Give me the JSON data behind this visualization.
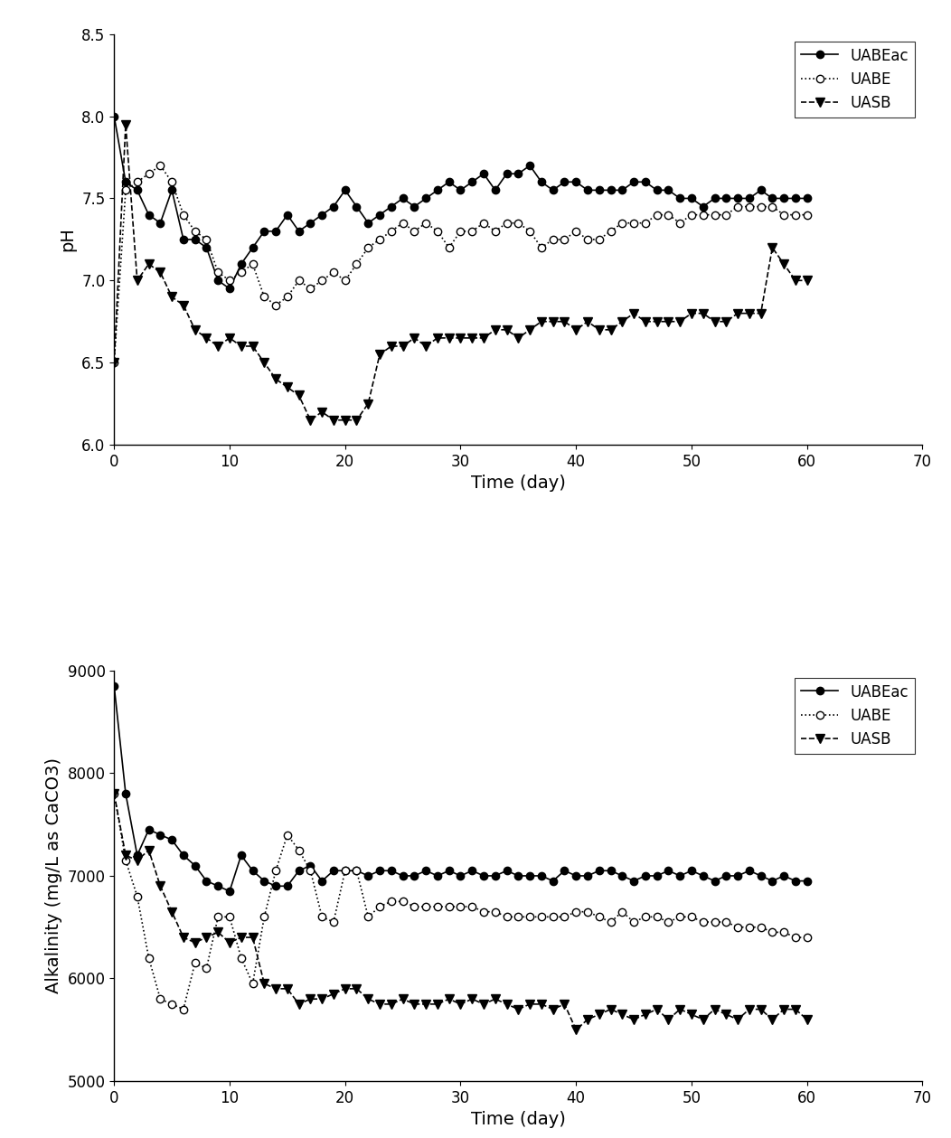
{
  "ph_UABEac_x": [
    0,
    1,
    2,
    3,
    4,
    5,
    6,
    7,
    8,
    9,
    10,
    11,
    12,
    13,
    14,
    15,
    16,
    17,
    18,
    19,
    20,
    21,
    22,
    23,
    24,
    25,
    26,
    27,
    28,
    29,
    30,
    31,
    32,
    33,
    34,
    35,
    36,
    37,
    38,
    39,
    40,
    41,
    42,
    43,
    44,
    45,
    46,
    47,
    48,
    49,
    50,
    51,
    52,
    53,
    54,
    55,
    56,
    57,
    58,
    59,
    60
  ],
  "ph_UABEac_y": [
    8.0,
    7.6,
    7.55,
    7.4,
    7.35,
    7.55,
    7.25,
    7.25,
    7.2,
    7.0,
    6.95,
    7.1,
    7.2,
    7.3,
    7.3,
    7.4,
    7.3,
    7.35,
    7.4,
    7.45,
    7.55,
    7.45,
    7.35,
    7.4,
    7.45,
    7.5,
    7.45,
    7.5,
    7.55,
    7.6,
    7.55,
    7.6,
    7.65,
    7.55,
    7.65,
    7.65,
    7.7,
    7.6,
    7.55,
    7.6,
    7.6,
    7.55,
    7.55,
    7.55,
    7.55,
    7.6,
    7.6,
    7.55,
    7.55,
    7.5,
    7.5,
    7.45,
    7.5,
    7.5,
    7.5,
    7.5,
    7.55,
    7.5,
    7.5,
    7.5,
    7.5
  ],
  "ph_UABE_x": [
    0,
    1,
    2,
    3,
    4,
    5,
    6,
    7,
    8,
    9,
    10,
    11,
    12,
    13,
    14,
    15,
    16,
    17,
    18,
    19,
    20,
    21,
    22,
    23,
    24,
    25,
    26,
    27,
    28,
    29,
    30,
    31,
    32,
    33,
    34,
    35,
    36,
    37,
    38,
    39,
    40,
    41,
    42,
    43,
    44,
    45,
    46,
    47,
    48,
    49,
    50,
    51,
    52,
    53,
    54,
    55,
    56,
    57,
    58,
    59,
    60
  ],
  "ph_UABE_y": [
    6.5,
    7.55,
    7.6,
    7.65,
    7.7,
    7.6,
    7.4,
    7.3,
    7.25,
    7.05,
    7.0,
    7.05,
    7.1,
    6.9,
    6.85,
    6.9,
    7.0,
    6.95,
    7.0,
    7.05,
    7.0,
    7.1,
    7.2,
    7.25,
    7.3,
    7.35,
    7.3,
    7.35,
    7.3,
    7.2,
    7.3,
    7.3,
    7.35,
    7.3,
    7.35,
    7.35,
    7.3,
    7.2,
    7.25,
    7.25,
    7.3,
    7.25,
    7.25,
    7.3,
    7.35,
    7.35,
    7.35,
    7.4,
    7.4,
    7.35,
    7.4,
    7.4,
    7.4,
    7.4,
    7.45,
    7.45,
    7.45,
    7.45,
    7.4,
    7.4,
    7.4
  ],
  "ph_UASB_x": [
    0,
    1,
    2,
    3,
    4,
    5,
    6,
    7,
    8,
    9,
    10,
    11,
    12,
    13,
    14,
    15,
    16,
    17,
    18,
    19,
    20,
    21,
    22,
    23,
    24,
    25,
    26,
    27,
    28,
    29,
    30,
    31,
    32,
    33,
    34,
    35,
    36,
    37,
    38,
    39,
    40,
    41,
    42,
    43,
    44,
    45,
    46,
    47,
    48,
    49,
    50,
    51,
    52,
    53,
    54,
    55,
    56,
    57,
    58,
    59,
    60
  ],
  "ph_UASB_y": [
    6.5,
    7.95,
    7.0,
    7.1,
    7.05,
    6.9,
    6.85,
    6.7,
    6.65,
    6.6,
    6.65,
    6.6,
    6.6,
    6.5,
    6.4,
    6.35,
    6.3,
    6.15,
    6.2,
    6.15,
    6.15,
    6.15,
    6.25,
    6.55,
    6.6,
    6.6,
    6.65,
    6.6,
    6.65,
    6.65,
    6.65,
    6.65,
    6.65,
    6.7,
    6.7,
    6.65,
    6.7,
    6.75,
    6.75,
    6.75,
    6.7,
    6.75,
    6.7,
    6.7,
    6.75,
    6.8,
    6.75,
    6.75,
    6.75,
    6.75,
    6.8,
    6.8,
    6.75,
    6.75,
    6.8,
    6.8,
    6.8,
    7.2,
    7.1,
    7.0,
    7.0
  ],
  "alk_UABEac_x": [
    0,
    1,
    2,
    3,
    4,
    5,
    6,
    7,
    8,
    9,
    10,
    11,
    12,
    13,
    14,
    15,
    16,
    17,
    18,
    19,
    20,
    21,
    22,
    23,
    24,
    25,
    26,
    27,
    28,
    29,
    30,
    31,
    32,
    33,
    34,
    35,
    36,
    37,
    38,
    39,
    40,
    41,
    42,
    43,
    44,
    45,
    46,
    47,
    48,
    49,
    50,
    51,
    52,
    53,
    54,
    55,
    56,
    57,
    58,
    59,
    60
  ],
  "alk_UABEac_y": [
    8850,
    7800,
    7200,
    7450,
    7400,
    7350,
    7200,
    7100,
    6950,
    6900,
    6850,
    7200,
    7050,
    6950,
    6900,
    6900,
    7050,
    7100,
    6950,
    7050,
    7050,
    7050,
    7000,
    7050,
    7050,
    7000,
    7000,
    7050,
    7000,
    7050,
    7000,
    7050,
    7000,
    7000,
    7050,
    7000,
    7000,
    7000,
    6950,
    7050,
    7000,
    7000,
    7050,
    7050,
    7000,
    6950,
    7000,
    7000,
    7050,
    7000,
    7050,
    7000,
    6950,
    7000,
    7000,
    7050,
    7000,
    6950,
    7000,
    6950,
    6950
  ],
  "alk_UABE_x": [
    0,
    1,
    2,
    3,
    4,
    5,
    6,
    7,
    8,
    9,
    10,
    11,
    12,
    13,
    14,
    15,
    16,
    17,
    18,
    19,
    20,
    21,
    22,
    23,
    24,
    25,
    26,
    27,
    28,
    29,
    30,
    31,
    32,
    33,
    34,
    35,
    36,
    37,
    38,
    39,
    40,
    41,
    42,
    43,
    44,
    45,
    46,
    47,
    48,
    49,
    50,
    51,
    52,
    53,
    54,
    55,
    56,
    57,
    58,
    59,
    60
  ],
  "alk_UABE_y": [
    7800,
    7150,
    6800,
    6200,
    5800,
    5750,
    5700,
    6150,
    6100,
    6600,
    6600,
    6200,
    5950,
    6600,
    7050,
    7400,
    7250,
    7050,
    6600,
    6550,
    7050,
    7050,
    6600,
    6700,
    6750,
    6750,
    6700,
    6700,
    6700,
    6700,
    6700,
    6700,
    6650,
    6650,
    6600,
    6600,
    6600,
    6600,
    6600,
    6600,
    6650,
    6650,
    6600,
    6550,
    6650,
    6550,
    6600,
    6600,
    6550,
    6600,
    6600,
    6550,
    6550,
    6550,
    6500,
    6500,
    6500,
    6450,
    6450,
    6400,
    6400
  ],
  "alk_UASB_x": [
    0,
    1,
    2,
    3,
    4,
    5,
    6,
    7,
    8,
    9,
    10,
    11,
    12,
    13,
    14,
    15,
    16,
    17,
    18,
    19,
    20,
    21,
    22,
    23,
    24,
    25,
    26,
    27,
    28,
    29,
    30,
    31,
    32,
    33,
    34,
    35,
    36,
    37,
    38,
    39,
    40,
    41,
    42,
    43,
    44,
    45,
    46,
    47,
    48,
    49,
    50,
    51,
    52,
    53,
    54,
    55,
    56,
    57,
    58,
    59,
    60
  ],
  "alk_UASB_y": [
    7800,
    7200,
    7150,
    7250,
    6900,
    6650,
    6400,
    6350,
    6400,
    6450,
    6350,
    6400,
    6400,
    5950,
    5900,
    5900,
    5750,
    5800,
    5800,
    5850,
    5900,
    5900,
    5800,
    5750,
    5750,
    5800,
    5750,
    5750,
    5750,
    5800,
    5750,
    5800,
    5750,
    5800,
    5750,
    5700,
    5750,
    5750,
    5700,
    5750,
    5500,
    5600,
    5650,
    5700,
    5650,
    5600,
    5650,
    5700,
    5600,
    5700,
    5650,
    5600,
    5700,
    5650,
    5600,
    5700,
    5700,
    5600,
    5700,
    5700,
    5600
  ],
  "ph_ylim": [
    6.0,
    8.5
  ],
  "ph_yticks": [
    6.0,
    6.5,
    7.0,
    7.5,
    8.0,
    8.5
  ],
  "alk_ylim": [
    5000,
    9000
  ],
  "alk_yticks": [
    5000,
    6000,
    7000,
    8000,
    9000
  ],
  "xlim": [
    0,
    70
  ],
  "xticks": [
    0,
    10,
    20,
    30,
    40,
    50,
    60,
    70
  ],
  "xlabel": "Time (day)",
  "ph_ylabel": "pH",
  "alk_ylabel": "Alkalinity (mg/L as CaCO3)",
  "legend_labels": [
    "UABEac",
    "UABE",
    "UASB"
  ],
  "line_color": "#000000",
  "bg_color": "#ffffff",
  "fontsize_label": 14,
  "fontsize_tick": 12,
  "fontsize_legend": 12
}
